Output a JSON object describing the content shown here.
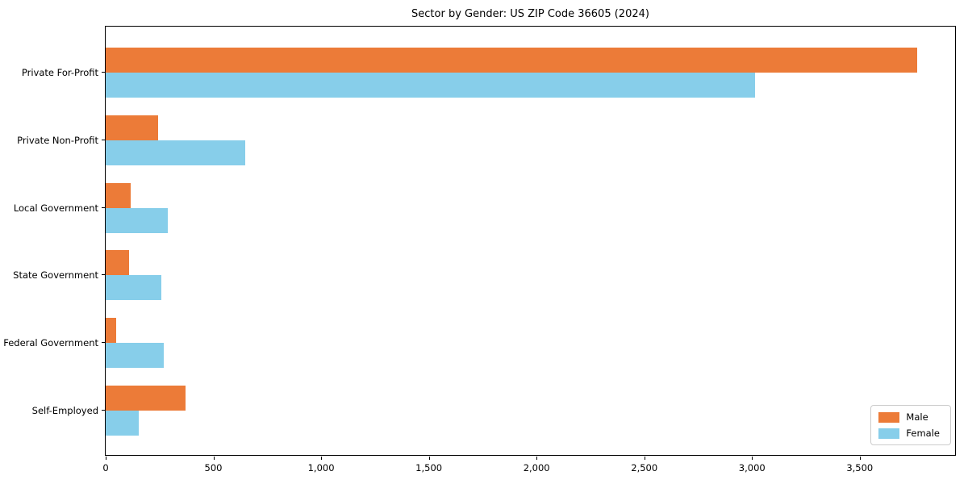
{
  "chart_data": {
    "type": "bar",
    "orientation": "horizontal",
    "title": "Sector by Gender: US ZIP Code 36605 (2024)",
    "categories": [
      "Private For-Profit",
      "Private Non-Profit",
      "Local Government",
      "State Government",
      "Federal Government",
      "Self-Employed"
    ],
    "series": [
      {
        "name": "Male",
        "color": "#ec7b38",
        "values": [
          3765,
          243,
          115,
          110,
          50,
          370
        ]
      },
      {
        "name": "Female",
        "color": "#87ceea",
        "values": [
          3015,
          647,
          290,
          258,
          268,
          153
        ]
      }
    ],
    "xlabel": "",
    "ylabel": "",
    "xlim": [
      0,
      3950
    ],
    "xticks": [
      0,
      500,
      1000,
      1500,
      2000,
      2500,
      3000,
      3500
    ],
    "xtick_labels": [
      "0",
      "500",
      "1,000",
      "1,500",
      "2,000",
      "2,500",
      "3,000",
      "3,500"
    ],
    "grid": false,
    "legend_position": "lower right"
  },
  "legend": {
    "items": [
      {
        "label": "Male",
        "color": "#ec7b38"
      },
      {
        "label": "Female",
        "color": "#87ceea"
      }
    ]
  }
}
